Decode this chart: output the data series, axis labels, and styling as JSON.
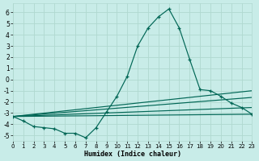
{
  "xlabel": "Humidex (Indice chaleur)",
  "bg_color": "#c8ece8",
  "grid_color": "#b0d8d0",
  "line_color": "#006655",
  "xlim": [
    0,
    23
  ],
  "ylim": [
    -5.5,
    6.8
  ],
  "yticks": [
    -5,
    -4,
    -3,
    -2,
    -1,
    0,
    1,
    2,
    3,
    4,
    5,
    6
  ],
  "xticks": [
    0,
    1,
    2,
    3,
    4,
    5,
    6,
    7,
    8,
    9,
    10,
    11,
    12,
    13,
    14,
    15,
    16,
    17,
    18,
    19,
    20,
    21,
    22,
    23
  ],
  "main_x": [
    0,
    1,
    2,
    3,
    4,
    5,
    6,
    7,
    8,
    9,
    10,
    11,
    12,
    13,
    14,
    15,
    16,
    17,
    18,
    19,
    20,
    21,
    22,
    23
  ],
  "main_y": [
    -3.3,
    -3.7,
    -4.2,
    -4.3,
    -4.4,
    -4.8,
    -4.8,
    -5.2,
    -4.3,
    -2.9,
    -1.5,
    0.3,
    3.0,
    4.6,
    5.6,
    6.3,
    4.6,
    1.8,
    -0.9,
    -1.0,
    -1.5,
    -2.1,
    -2.5,
    -3.1
  ],
  "straight_lines": [
    {
      "x0": 0,
      "y0": -3.3,
      "x1": 23,
      "y1": -3.1
    },
    {
      "x0": 0,
      "y0": -3.3,
      "x1": 23,
      "y1": -2.5
    },
    {
      "x0": 0,
      "y0": -3.3,
      "x1": 23,
      "y1": -1.6
    },
    {
      "x0": 0,
      "y0": -3.3,
      "x1": 23,
      "y1": -1.0
    }
  ]
}
